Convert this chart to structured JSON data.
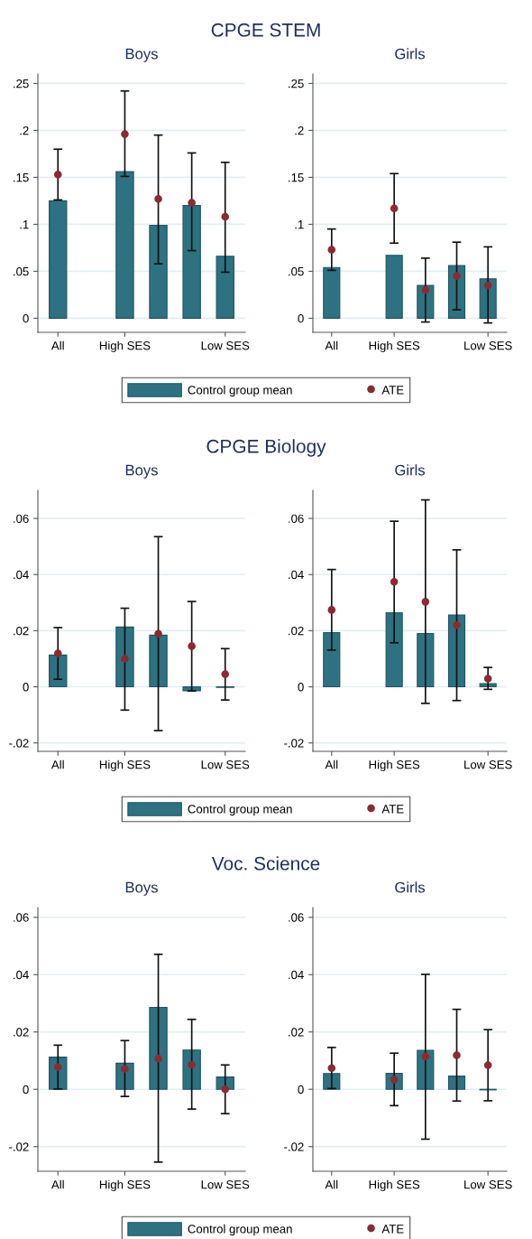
{
  "chart_data": [
    {
      "type": "bar",
      "title": "CPGE STEM",
      "subtitle": "Boys",
      "categories": [
        "All",
        null,
        "High SES",
        null,
        null,
        "Low SES"
      ],
      "ylim": [
        -0.015,
        0.26
      ],
      "yticks": [
        0,
        {
          "value": 0.05,
          "label": ".05"
        },
        {
          "value": 0.1,
          "label": ".1"
        },
        {
          "value": 0.15,
          "label": ".15"
        },
        {
          "value": 0.2,
          "label": ".2"
        },
        {
          "value": 0.25,
          "label": ".25"
        }
      ],
      "grid": "y",
      "legend": "bottom",
      "marker": "circle",
      "series": [
        {
          "name": "Control group mean",
          "color": "#2e7281",
          "values": [
            0.125,
            null,
            0.156,
            0.099,
            0.12,
            0.066
          ]
        },
        {
          "name": "ATE",
          "type": "scatter",
          "color": "#8b2a33",
          "values": [
            0.153,
            null,
            0.196,
            0.127,
            0.123,
            0.108
          ],
          "errors": [
            [
              0.126,
              0.18
            ],
            null,
            [
              0.151,
              0.242
            ],
            [
              0.058,
              0.195
            ],
            [
              0.072,
              0.176
            ],
            [
              0.049,
              0.166
            ]
          ]
        }
      ]
    },
    {
      "type": "bar",
      "subtitle": "Girls",
      "categories": [
        "All",
        null,
        "High SES",
        null,
        null,
        "Low SES"
      ],
      "ylim": [
        -0.015,
        0.26
      ],
      "yticks": [
        0,
        {
          "value": 0.05,
          "label": ".05"
        },
        {
          "value": 0.1,
          "label": ".1"
        },
        {
          "value": 0.15,
          "label": ".15"
        },
        {
          "value": 0.2,
          "label": ".2"
        },
        {
          "value": 0.25,
          "label": ".25"
        }
      ],
      "grid": "y",
      "marker": "circle",
      "series": [
        {
          "color": "#2e7281",
          "values": [
            0.054,
            null,
            0.067,
            0.035,
            0.056,
            0.042
          ]
        },
        {
          "type": "scatter",
          "color": "#8b2a33",
          "values": [
            0.073,
            null,
            0.117,
            0.03,
            0.045,
            0.035
          ],
          "errors": [
            [
              0.051,
              0.095
            ],
            null,
            [
              0.08,
              0.154
            ],
            [
              -0.004,
              0.064
            ],
            [
              0.009,
              0.081
            ],
            [
              -0.005,
              0.076
            ]
          ]
        }
      ]
    },
    {
      "type": "bar",
      "title": "CPGE Biology",
      "subtitle": "Boys",
      "categories": [
        "All",
        null,
        "High SES",
        null,
        null,
        "Low SES"
      ],
      "ylim": [
        -0.023,
        0.07
      ],
      "yticks": [
        {
          "value": -0.02,
          "label": "-.02"
        },
        0,
        {
          "value": 0.02,
          "label": ".02"
        },
        {
          "value": 0.04,
          "label": ".04"
        },
        {
          "value": 0.06,
          "label": ".06"
        }
      ],
      "grid": "y",
      "legend": "bottom",
      "marker": "circle",
      "series": [
        {
          "name": "Control group mean",
          "color": "#2e7281",
          "values": [
            0.0113,
            null,
            0.0213,
            0.0184,
            -0.0014,
            -0.0002
          ]
        },
        {
          "name": "ATE",
          "type": "scatter",
          "color": "#8b2a33",
          "values": [
            0.0119,
            null,
            0.01,
            0.0189,
            0.0145,
            0.0045
          ],
          "errors": [
            [
              0.0027,
              0.0211
            ],
            null,
            [
              -0.0083,
              0.028
            ],
            [
              -0.0156,
              0.0535
            ],
            [
              -0.0015,
              0.0304
            ],
            [
              -0.0047,
              0.0136
            ]
          ]
        }
      ]
    },
    {
      "type": "bar",
      "subtitle": "Girls",
      "categories": [
        "All",
        null,
        "High SES",
        null,
        null,
        "Low SES"
      ],
      "ylim": [
        -0.023,
        0.07
      ],
      "yticks": [
        {
          "value": -0.02,
          "label": "-.02"
        },
        0,
        {
          "value": 0.02,
          "label": ".02"
        },
        {
          "value": 0.04,
          "label": ".04"
        },
        {
          "value": 0.06,
          "label": ".06"
        }
      ],
      "grid": "y",
      "marker": "circle",
      "series": [
        {
          "color": "#2e7281",
          "values": [
            0.0193,
            null,
            0.0264,
            0.019,
            0.0256,
            0.0011
          ]
        },
        {
          "type": "scatter",
          "color": "#8b2a33",
          "values": [
            0.0274,
            null,
            0.0374,
            0.0303,
            0.022,
            0.0029
          ],
          "errors": [
            [
              0.0131,
              0.0418
            ],
            null,
            [
              0.0157,
              0.059
            ],
            [
              -0.0059,
              0.0666
            ],
            [
              -0.0049,
              0.0488
            ],
            [
              -0.0009,
              0.0069
            ]
          ]
        }
      ]
    },
    {
      "type": "bar",
      "title": "Voc. Science",
      "subtitle": "Boys",
      "categories": [
        "All",
        null,
        "High SES",
        null,
        null,
        "Low SES"
      ],
      "ylim": [
        -0.0286,
        0.0634
      ],
      "yticks": [
        {
          "value": -0.02,
          "label": "-.02"
        },
        0,
        {
          "value": 0.02,
          "label": ".02"
        },
        {
          "value": 0.04,
          "label": ".04"
        },
        {
          "value": 0.06,
          "label": ".06"
        }
      ],
      "grid": "y",
      "legend": "bottom",
      "marker": "circle",
      "series": [
        {
          "name": "Control group mean",
          "color": "#2e7281",
          "values": [
            0.0112,
            null,
            0.0091,
            0.0286,
            0.0137,
            0.0043
          ]
        },
        {
          "name": "ATE",
          "type": "scatter",
          "color": "#8b2a33",
          "values": [
            0.0077,
            null,
            0.0071,
            0.0107,
            0.0086,
            0.0
          ],
          "errors": [
            [
              0.0001,
              0.0154
            ],
            null,
            [
              -0.0025,
              0.017
            ],
            [
              -0.0254,
              0.0471
            ],
            [
              -0.0069,
              0.0244
            ],
            [
              -0.0085,
              0.0085
            ]
          ]
        }
      ]
    },
    {
      "type": "bar",
      "subtitle": "Girls",
      "categories": [
        "All",
        null,
        "High SES",
        null,
        null,
        "Low SES"
      ],
      "ylim": [
        -0.0286,
        0.0634
      ],
      "yticks": [
        {
          "value": -0.02,
          "label": "-.02"
        },
        0,
        {
          "value": 0.02,
          "label": ".02"
        },
        {
          "value": 0.04,
          "label": ".04"
        },
        {
          "value": 0.06,
          "label": ".06"
        }
      ],
      "grid": "y",
      "marker": "circle",
      "series": [
        {
          "color": "#2e7281",
          "values": [
            0.0055,
            null,
            0.0056,
            0.0136,
            0.0046,
            -0.0002
          ]
        },
        {
          "type": "scatter",
          "color": "#8b2a33",
          "values": [
            0.0074,
            null,
            0.0034,
            0.0114,
            0.0119,
            0.0084
          ],
          "errors": [
            [
              0.0003,
              0.0146
            ],
            null,
            [
              -0.0057,
              0.0126
            ],
            [
              -0.0174,
              0.0401
            ],
            [
              -0.0041,
              0.0279
            ],
            [
              -0.004,
              0.0208
            ]
          ]
        }
      ]
    }
  ]
}
